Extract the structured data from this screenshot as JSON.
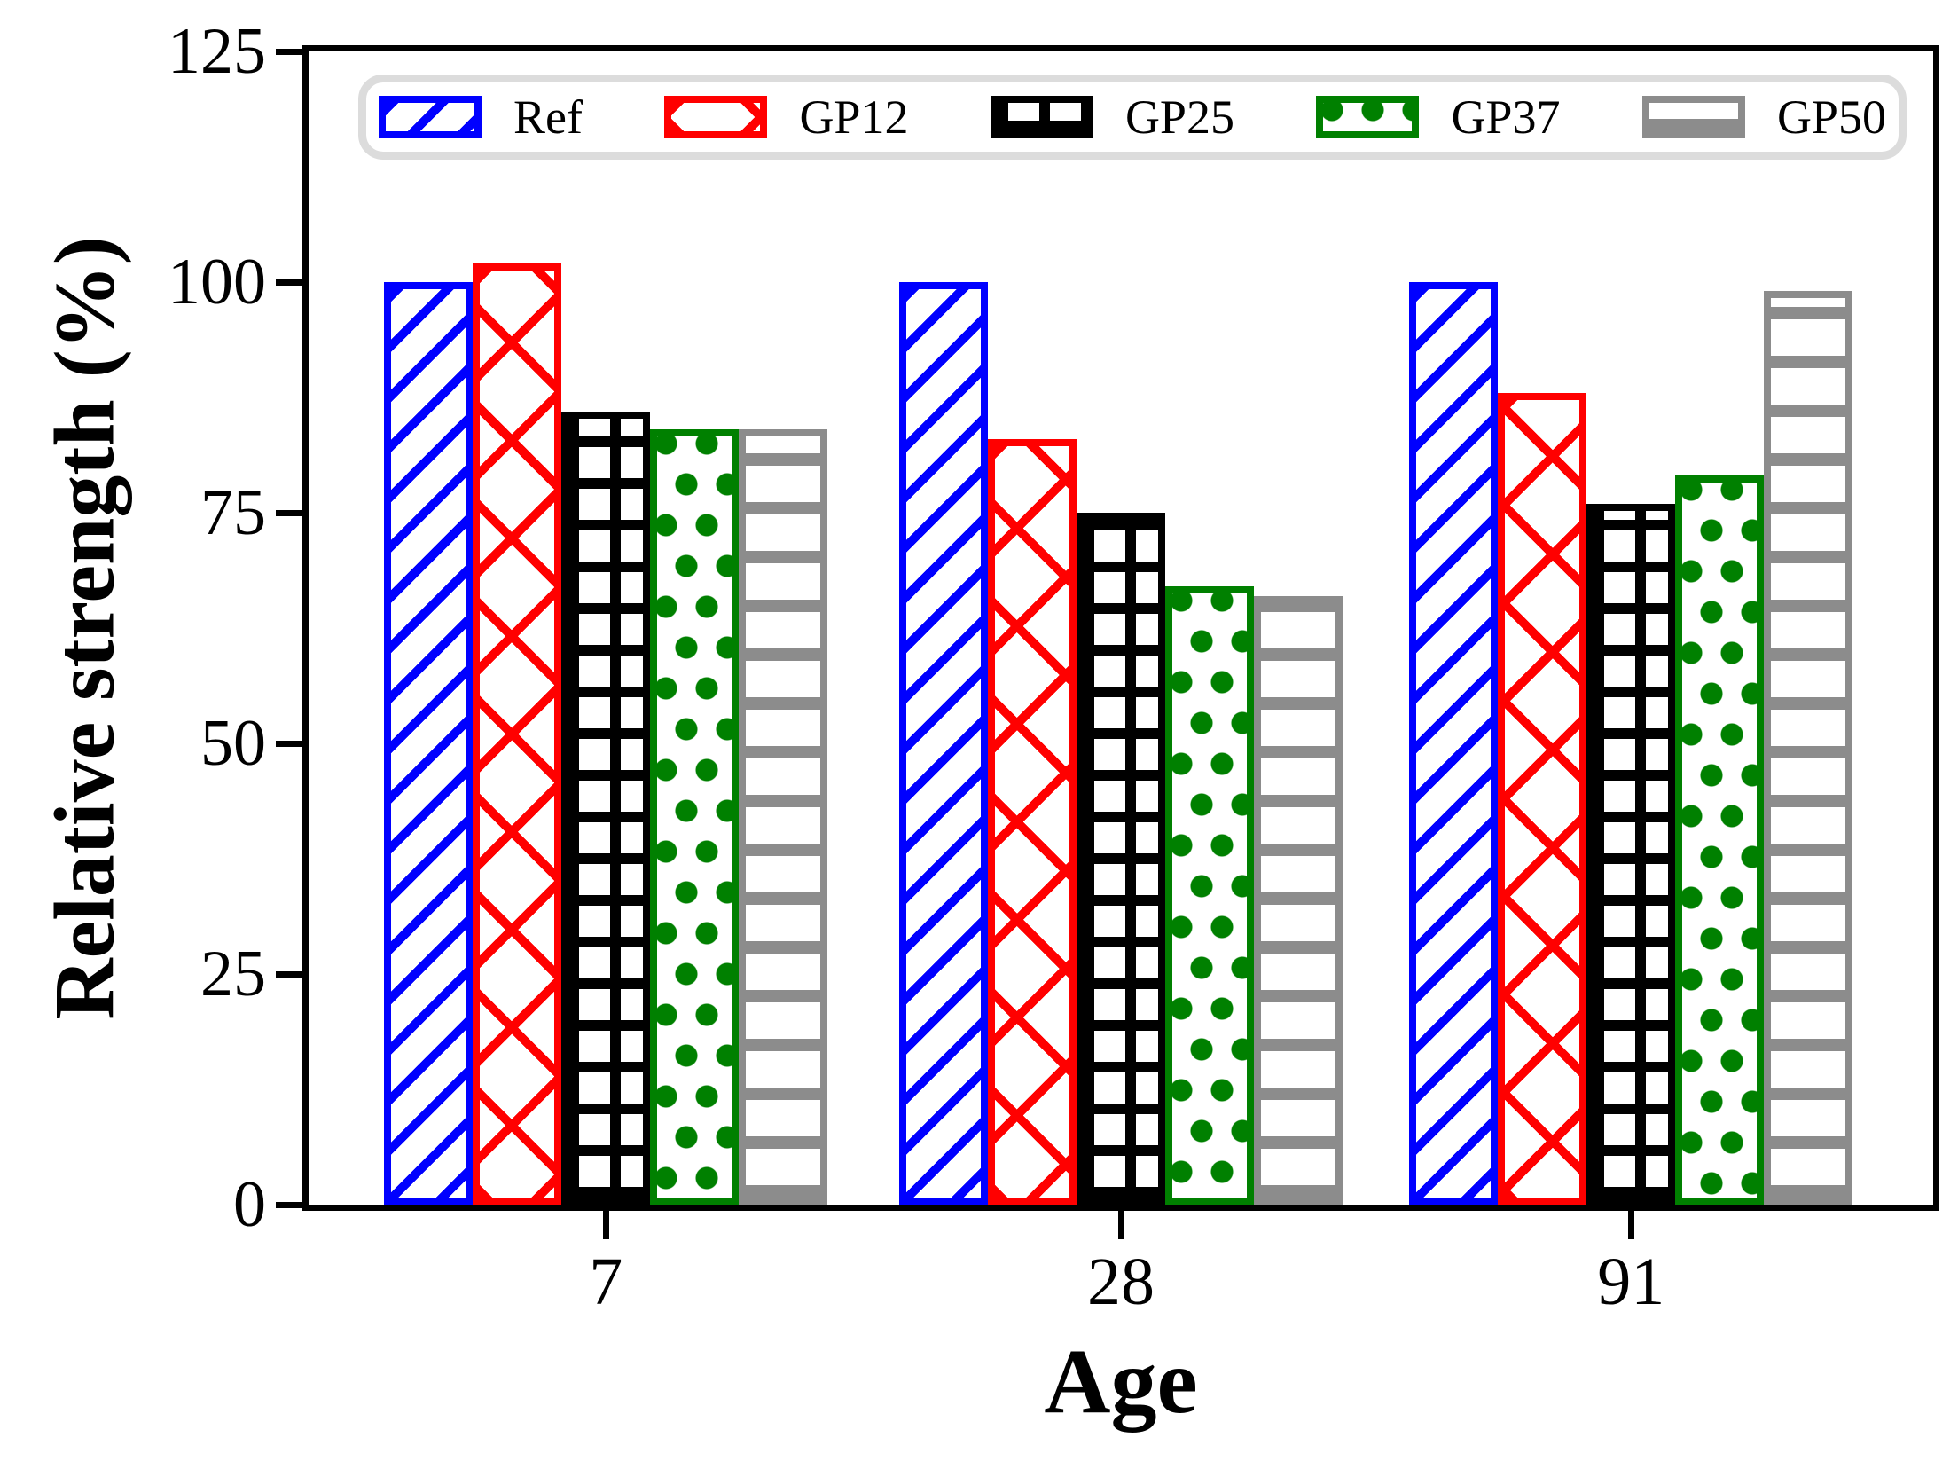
{
  "figure": {
    "background": "#ffffff",
    "frame_color": "#000000",
    "legend_border_color": "#dcdcdc"
  },
  "chart_data": {
    "type": "bar",
    "title": "",
    "xlabel": "Age",
    "ylabel": "Relative strength (%)",
    "categories": [
      "7",
      "28",
      "91"
    ],
    "yticks": [
      0,
      25,
      50,
      75,
      100,
      125
    ],
    "ylim": [
      0,
      125
    ],
    "grid": false,
    "legend_position": "top-inside",
    "series": [
      {
        "name": "Ref",
        "color": "#0000ff",
        "hatch": "diagonal",
        "values": [
          100,
          100,
          100
        ]
      },
      {
        "name": "GP12",
        "color": "#ff0000",
        "hatch": "cross",
        "values": [
          102,
          83,
          88
        ]
      },
      {
        "name": "GP25",
        "color": "#000000",
        "hatch": "grid",
        "values": [
          86,
          75,
          76
        ]
      },
      {
        "name": "GP37",
        "color": "#008000",
        "hatch": "dots",
        "values": [
          84,
          67,
          79
        ]
      },
      {
        "name": "GP50",
        "color": "#8c8c8c",
        "hatch": "hlines",
        "values": [
          84,
          66,
          99
        ]
      }
    ],
    "legend_labels": [
      "Ref",
      "GP12",
      "GP25",
      "GP37",
      "GP50"
    ]
  }
}
